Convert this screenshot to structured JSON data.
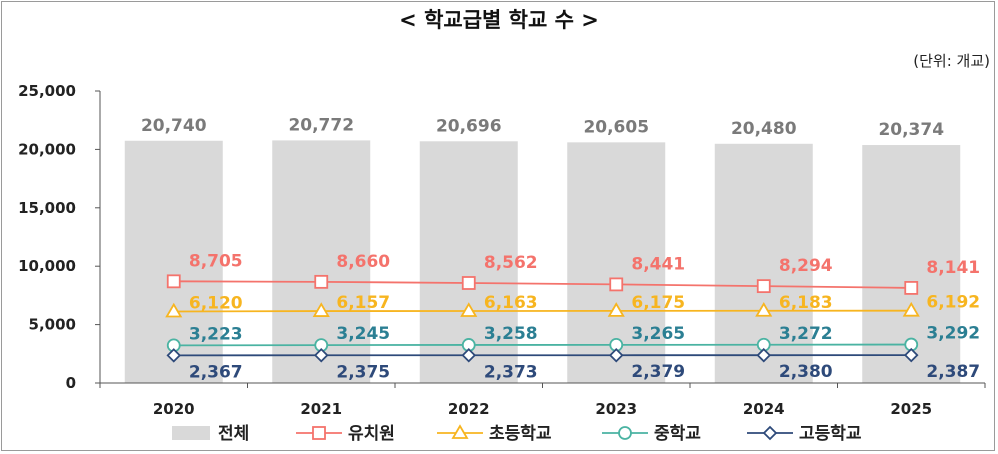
{
  "title": "< 학교급별 학교 수 >",
  "unit_label": "(단위: 개교)",
  "chart_data": {
    "type": "bar",
    "title": "< 학교급별 학교 수 >",
    "xlabel": "",
    "ylabel": "",
    "ylim": [
      0,
      25000
    ],
    "yticks": [
      "0",
      "5,000",
      "10,000",
      "15,000",
      "20,000",
      "25,000"
    ],
    "ytick_values": [
      0,
      5000,
      10000,
      15000,
      20000,
      25000
    ],
    "categories": [
      "2020",
      "2021",
      "2022",
      "2023",
      "2024",
      "2025"
    ],
    "grid": false,
    "legend_position": "bottom",
    "bar_series": {
      "name": "전체",
      "color": "#d9d9d9",
      "values": [
        20740,
        20772,
        20696,
        20605,
        20480,
        20374
      ],
      "labels": [
        "20,740",
        "20,772",
        "20,696",
        "20,605",
        "20,480",
        "20,374"
      ]
    },
    "line_series": [
      {
        "name": "유치원",
        "color": "#f4736c",
        "marker": "square",
        "values": [
          8705,
          8660,
          8562,
          8441,
          8294,
          8141
        ],
        "labels": [
          "8,705",
          "8,660",
          "8,562",
          "8,441",
          "8,294",
          "8,141"
        ]
      },
      {
        "name": "초등학교",
        "color": "#f7b520",
        "marker": "triangle",
        "values": [
          6120,
          6157,
          6163,
          6175,
          6183,
          6192
        ],
        "labels": [
          "6,120",
          "6,157",
          "6,163",
          "6,175",
          "6,183",
          "6,192"
        ]
      },
      {
        "name": "중학교",
        "color": "#4ab3a2",
        "label_color": "#2b7f93",
        "marker": "circle",
        "values": [
          3223,
          3245,
          3258,
          3265,
          3272,
          3292
        ],
        "labels": [
          "3,223",
          "3,245",
          "3,258",
          "3,265",
          "3,272",
          "3,292"
        ]
      },
      {
        "name": "고등학교",
        "color": "#2e4a7a",
        "marker": "diamond",
        "values": [
          2367,
          2375,
          2373,
          2379,
          2380,
          2387
        ],
        "labels": [
          "2,367",
          "2,375",
          "2,373",
          "2,379",
          "2,380",
          "2,387"
        ]
      }
    ]
  }
}
